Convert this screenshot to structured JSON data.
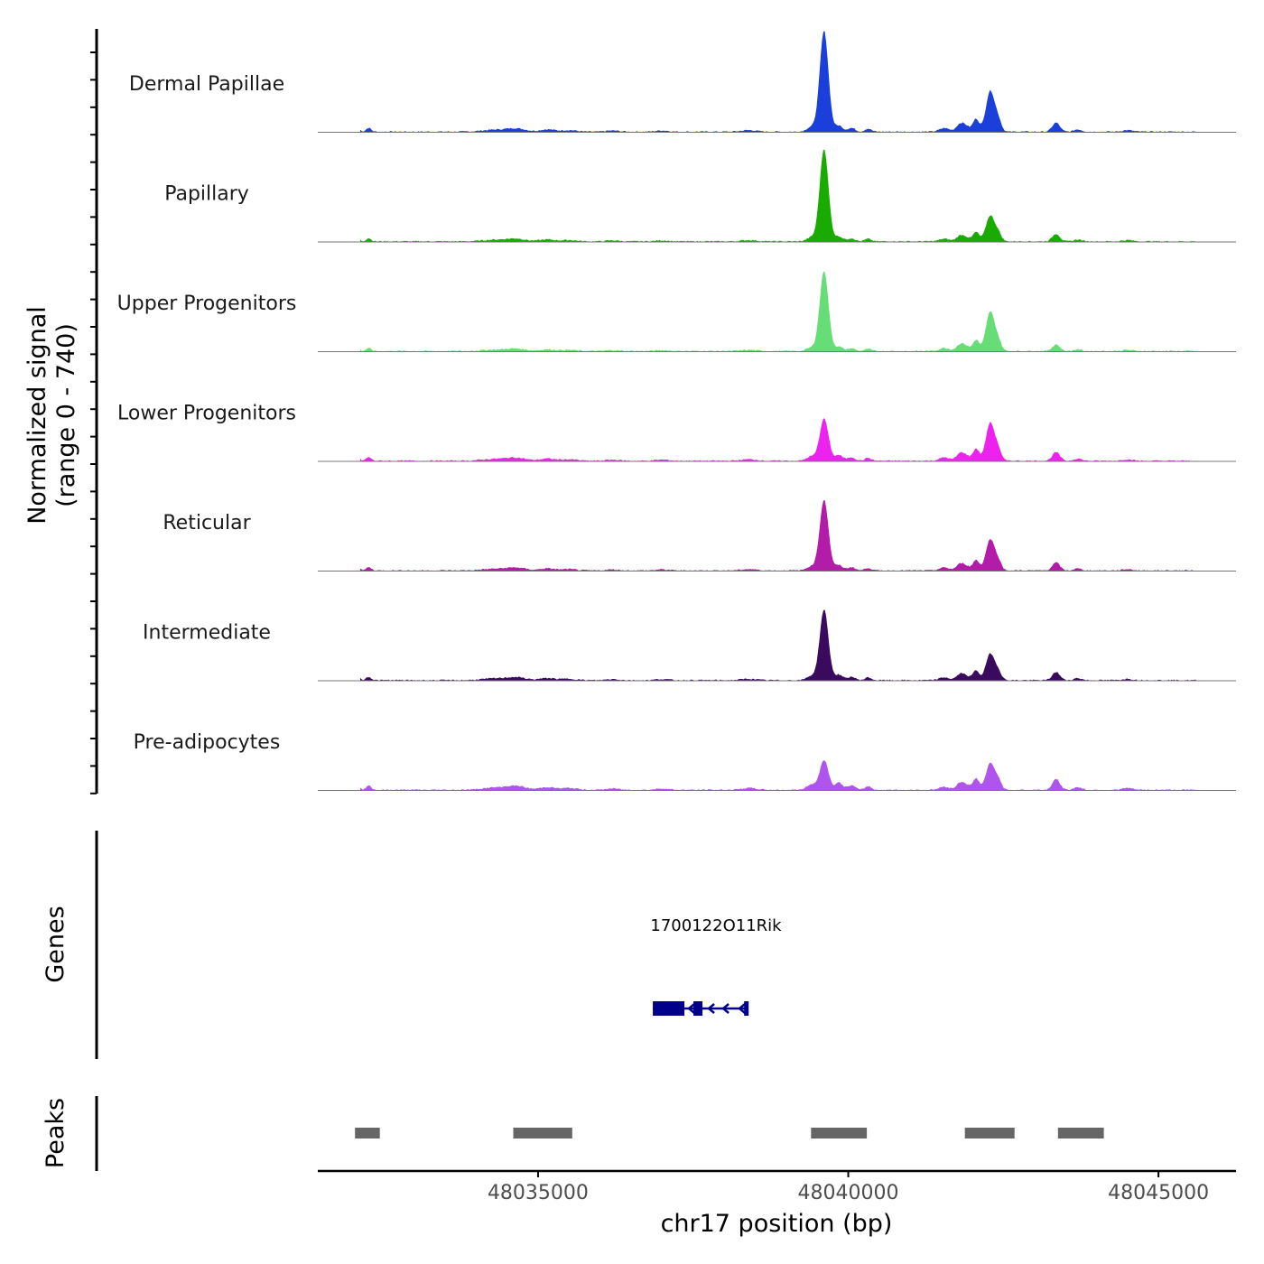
{
  "chart_data": {
    "type": "area",
    "title": "",
    "ylabel": "Normalized signal",
    "ylabel_range": "(range 0 - 740)",
    "y_range": [
      0,
      740
    ],
    "xlabel": "chr17 position (bp)",
    "x_range": [
      48031450,
      48046250
    ],
    "x_ticks": [
      48035000,
      48040000,
      48045000
    ],
    "x_tick_labels": [
      "48035000",
      "48040000",
      "48045000"
    ],
    "tracks": [
      {
        "name": "Dermal Papillae",
        "color": "#1a3fdb",
        "scale": 1.0,
        "main_peak": 740,
        "side_peak": 300
      },
      {
        "name": "Papillary",
        "color": "#1aab00",
        "scale": 0.84,
        "main_peak": 680,
        "side_peak": 190
      },
      {
        "name": "Upper Progenitors",
        "color": "#66dd77",
        "scale": 0.73,
        "main_peak": 590,
        "side_peak": 290
      },
      {
        "name": "Lower Progenitors",
        "color": "#ee22ee",
        "scale": 0.95,
        "main_peak": 310,
        "side_peak": 280
      },
      {
        "name": "Reticular",
        "color": "#b21ca8",
        "scale": 0.88,
        "main_peak": 520,
        "side_peak": 230
      },
      {
        "name": "Intermediate",
        "color": "#3a0a5e",
        "scale": 0.9,
        "main_peak": 520,
        "side_peak": 195
      },
      {
        "name": "Pre-adipocytes",
        "color": "#b054ee",
        "scale": 1.2,
        "main_peak": 220,
        "side_peak": 195
      }
    ],
    "genes_label": "Genes",
    "gene": {
      "name": "1700122O11Rik",
      "start": 48036850,
      "end": 48038380,
      "strand": "-",
      "color": "#00008b"
    },
    "peaks_label": "Peaks",
    "peak_color": "#666666",
    "peaks": [
      {
        "start": 48032050,
        "end": 48032450
      },
      {
        "start": 48034600,
        "end": 48035550
      },
      {
        "start": 48039400,
        "end": 48040300
      },
      {
        "start": 48041880,
        "end": 48042680
      },
      {
        "start": 48043380,
        "end": 48044120
      }
    ]
  }
}
